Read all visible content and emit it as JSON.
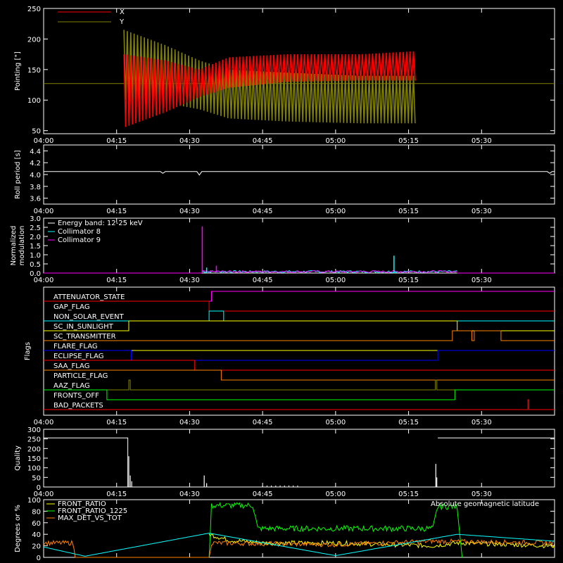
{
  "time_ticks": [
    "04:00",
    "04:15",
    "04:30",
    "04:45",
    "05:00",
    "05:15",
    "05:30"
  ],
  "time_ticks_min": [
    0,
    15,
    30,
    45,
    60,
    75,
    90
  ],
  "time_range_min": [
    0,
    105
  ],
  "colors": {
    "background": "#000000",
    "axes": "#ffffff",
    "x_pointing": "#ff0000",
    "y_pointing": "#808000",
    "roll": "#ffffff",
    "energy": "#ffffff",
    "collimator8": "#00ffff",
    "collimator9": "#ff00ff",
    "quality": "#ffffff",
    "front_ratio": "#ffff00",
    "front_ratio_1225": "#00ff00",
    "max_det": "#ff8000",
    "geomag": "#00ffff"
  },
  "chart_data": [
    {
      "type": "line",
      "panel": "pointing",
      "ylabel": "Pointing [\"]",
      "ylim": [
        45,
        250
      ],
      "yticks": [
        50,
        100,
        150,
        200,
        250
      ],
      "legend": [
        "X",
        "Y"
      ],
      "reference_line": 127,
      "x_min": [
        0,
        16.5,
        25,
        32,
        38,
        50,
        65,
        76.5,
        105
      ],
      "series": [
        {
          "name": "X",
          "min": [
            127,
            55,
            80,
            105,
            120,
            130,
            132,
            132,
            127
          ],
          "max": [
            127,
            175,
            165,
            150,
            170,
            175,
            175,
            180,
            127
          ]
        },
        {
          "name": "Y",
          "min": [
            127,
            100,
            95,
            85,
            70,
            65,
            62,
            62,
            127
          ],
          "max": [
            127,
            215,
            190,
            165,
            150,
            145,
            140,
            140,
            127
          ]
        }
      ]
    },
    {
      "type": "line",
      "panel": "roll",
      "ylabel": "Roll period [s]",
      "ylim": [
        3.5,
        4.5
      ],
      "yticks": [
        "3.6",
        "3.8",
        "4.0",
        "4.2",
        "4.4"
      ],
      "baseline": 4.05,
      "dips": [
        {
          "t": 24.5,
          "v": 4.02
        },
        {
          "t": 32.0,
          "v": 3.99
        },
        {
          "t": 104.0,
          "v": 4.02
        }
      ]
    },
    {
      "type": "line",
      "panel": "modulation",
      "ylabel": "Normalized modulation",
      "ylim": [
        0,
        3.0
      ],
      "yticks": [
        "0.0",
        "0.5",
        "1.0",
        "1.5",
        "2.0",
        "2.5",
        "3.0"
      ],
      "legend": [
        "Energy band: 12-25 keV",
        "Collimator 8",
        "Collimator 9"
      ],
      "active_range_min": [
        32.5,
        85
      ],
      "spikes": [
        {
          "series": "Collimator 9",
          "t": 32.6,
          "v": 2.55
        },
        {
          "series": "Collimator 8",
          "t": 72.0,
          "v": 0.95
        },
        {
          "series": "Collimator 9",
          "t": 35.5,
          "v": 0.4
        },
        {
          "series": "Collimator 8",
          "t": 33.5,
          "v": 0.3
        }
      ],
      "noise_level": 0.12
    },
    {
      "type": "step",
      "panel": "flags",
      "ylabel": "Flags",
      "flags": [
        {
          "name": "ATTENUATOR_STATE",
          "color": "#ff00ff",
          "steps": [
            [
              0,
              0
            ],
            [
              34.5,
              1
            ]
          ]
        },
        {
          "name": "GAP_FLAG",
          "color": "#ff0000",
          "steps": [
            [
              0,
              1
            ],
            [
              34,
              0
            ]
          ]
        },
        {
          "name": "NON_SOLAR_EVENT",
          "color": "#00ffff",
          "steps": [
            [
              0,
              0
            ],
            [
              34,
              1
            ],
            [
              37,
              0
            ]
          ]
        },
        {
          "name": "SC_IN_SUNLIGHT",
          "color": "#ffff00",
          "steps": [
            [
              0,
              0
            ],
            [
              17.5,
              1
            ],
            [
              85,
              0
            ]
          ]
        },
        {
          "name": "SC_TRANSMITTER",
          "color": "#ff8000",
          "steps": [
            [
              0,
              0
            ],
            [
              84,
              1
            ],
            [
              88,
              0
            ],
            [
              88.5,
              1
            ],
            [
              94,
              0
            ]
          ]
        },
        {
          "name": "FLARE_FLAG",
          "color": "#ffff00",
          "steps": [
            [
              0,
              0
            ]
          ]
        },
        {
          "name": "ECLIPSE_FLAG",
          "color": "#0000ff",
          "steps": [
            [
              0,
              1
            ],
            [
              18,
              0
            ],
            [
              81,
              1
            ]
          ]
        },
        {
          "name": "SAA_FLAG",
          "color": "#ff0000",
          "steps": [
            [
              0,
              1
            ],
            [
              31,
              0
            ]
          ]
        },
        {
          "name": "PARTICLE_FLAG",
          "color": "#ff8000",
          "steps": [
            [
              0,
              1
            ],
            [
              36.5,
              0
            ]
          ]
        },
        {
          "name": "AAZ_FLAG",
          "color": "#808000",
          "steps": [
            [
              0,
              0
            ],
            [
              17.5,
              1
            ],
            [
              17.8,
              0
            ],
            [
              80.5,
              1
            ],
            [
              80.8,
              0
            ]
          ]
        },
        {
          "name": "FRONTS_OFF",
          "color": "#00ff00",
          "steps": [
            [
              0,
              1
            ],
            [
              13,
              0
            ],
            [
              84.5,
              1
            ]
          ]
        },
        {
          "name": "BAD_PACKETS",
          "color": "#ff0000",
          "steps": [
            [
              0,
              0
            ],
            [
              99.5,
              1
            ],
            [
              99.7,
              0
            ]
          ]
        }
      ]
    },
    {
      "type": "line",
      "panel": "quality",
      "ylabel": "Quality",
      "ylim": [
        0,
        300
      ],
      "yticks": [
        0,
        50,
        100,
        150,
        200,
        250,
        300
      ],
      "segments": [
        {
          "t0": 0,
          "t1": 17.3,
          "v": 255
        },
        {
          "t0": 81.0,
          "t1": 105,
          "v": 255
        }
      ],
      "spikes": [
        {
          "t": 17.5,
          "v": 160
        },
        {
          "t": 17.8,
          "v": 60
        },
        {
          "t": 18.1,
          "v": 30
        },
        {
          "t": 33,
          "v": 60
        },
        {
          "t": 33.5,
          "v": 20
        },
        {
          "t": 80.6,
          "v": 120
        },
        {
          "t": 80.8,
          "v": 50
        }
      ]
    },
    {
      "type": "line",
      "panel": "ratios",
      "ylabel": "Degrees or %",
      "ylim": [
        0,
        100
      ],
      "yticks": [
        0,
        20,
        40,
        60,
        80,
        100
      ],
      "legend": [
        "FRONT_RATIO",
        "FRONT_RATIO_1225",
        "MAX_DET_VS_TOT"
      ],
      "annotation": "Absolute geomagnetic latitude",
      "series": [
        {
          "name": "FRONT_RATIO",
          "x": [
            34,
            38,
            45,
            60,
            80,
            85,
            105
          ],
          "y": [
            40,
            30,
            25,
            25,
            20,
            25,
            20
          ]
        },
        {
          "name": "FRONT_RATIO_1225",
          "x": [
            34,
            34.5,
            43,
            44,
            80,
            81,
            85,
            86
          ],
          "y": [
            0,
            90,
            90,
            50,
            50,
            88,
            88,
            0
          ]
        },
        {
          "name": "MAX_DET_VS_TOT",
          "x": [
            0,
            6,
            6.5,
            34,
            34.5,
            60,
            80,
            105
          ],
          "y": [
            25,
            25,
            0,
            0,
            25,
            22,
            28,
            25
          ]
        },
        {
          "name": "Absolute geomagnetic latitude",
          "x": [
            0,
            8.5,
            34,
            60,
            85,
            105
          ],
          "y": [
            18,
            2,
            42,
            3,
            40,
            28
          ]
        }
      ]
    }
  ]
}
